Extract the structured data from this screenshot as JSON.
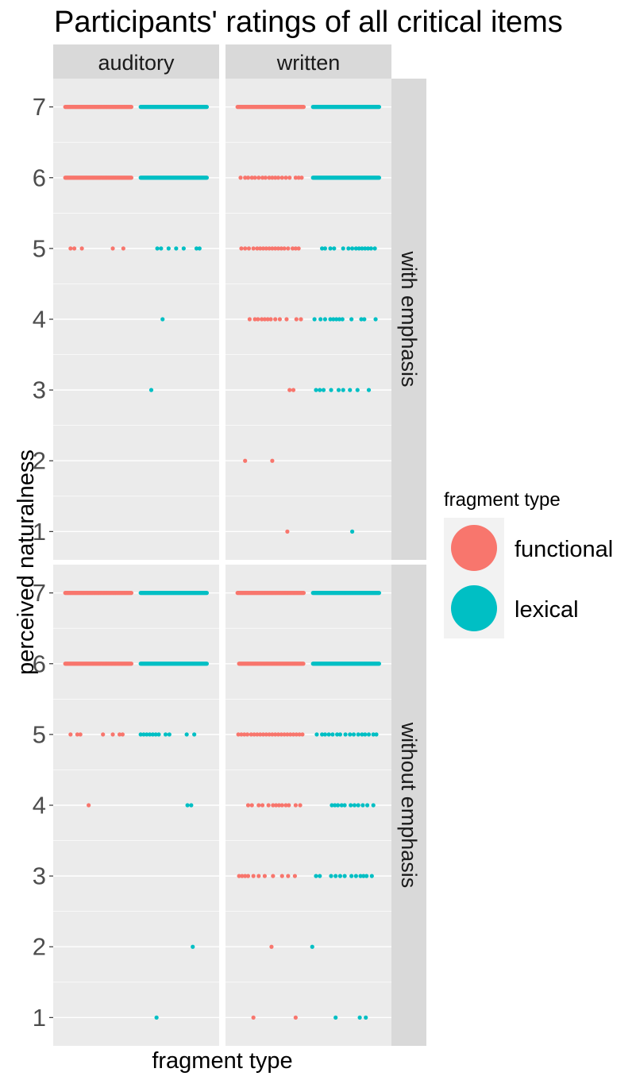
{
  "chart_data": {
    "type": "scatter",
    "title": "Participants' ratings of all critical items",
    "xlabel": "fragment type",
    "ylabel": "perceived naturalness",
    "ylim": [
      0.6,
      7.4
    ],
    "yticks": [
      1,
      2,
      3,
      4,
      5,
      6,
      7
    ],
    "grid": true,
    "x_ticks_shown": false,
    "legend": {
      "title": "fragment type",
      "position": "right",
      "entries": [
        {
          "label": "functional",
          "color": "#F8766D"
        },
        {
          "label": "lexical",
          "color": "#00BFC4"
        }
      ]
    },
    "facet_columns": [
      "auditory",
      "written"
    ],
    "facet_rows": [
      "with emphasis",
      "without emphasis"
    ],
    "jitter_groups": {
      "functional": [
        0.55,
        1.45
      ],
      "lexical": [
        1.55,
        2.45
      ]
    },
    "panels": [
      {
        "column": "auditory",
        "row": "with emphasis",
        "series": [
          {
            "name": "functional",
            "points": [
              {
                "y": 7,
                "x_range": [
                  0.56,
                  1.44
                ]
              },
              {
                "y": 6,
                "x_range": [
                  0.56,
                  1.44
                ]
              },
              {
                "y": 5,
                "x": [
                  0.63,
                  0.68,
                  0.78,
                  1.19,
                  1.33
                ]
              }
            ]
          },
          {
            "name": "lexical",
            "points": [
              {
                "y": 7,
                "x_range": [
                  1.56,
                  2.44
                ]
              },
              {
                "y": 6,
                "x_range": [
                  1.56,
                  2.44
                ]
              },
              {
                "y": 5,
                "x": [
                  1.78,
                  1.83,
                  1.93,
                  2.03,
                  2.13,
                  2.3,
                  2.34
                ]
              },
              {
                "y": 4,
                "x": [
                  1.85
                ]
              },
              {
                "y": 3,
                "x": [
                  1.7
                ]
              }
            ]
          }
        ]
      },
      {
        "column": "written",
        "row": "with emphasis",
        "series": [
          {
            "name": "functional",
            "points": [
              {
                "y": 7,
                "x_range": [
                  0.56,
                  1.44
                ]
              },
              {
                "y": 6,
                "x": [
                  0.6,
                  0.66,
                  0.7,
                  0.75,
                  0.79,
                  0.84,
                  0.89,
                  0.93,
                  0.98,
                  1.02,
                  1.06,
                  1.1,
                  1.15,
                  1.2,
                  1.25,
                  1.33,
                  1.37,
                  1.41
                ]
              },
              {
                "y": 5,
                "x": [
                  0.61,
                  0.66,
                  0.71,
                  0.77,
                  0.82,
                  0.86,
                  0.9,
                  0.94,
                  0.98,
                  1.02,
                  1.06,
                  1.1,
                  1.14,
                  1.18,
                  1.23,
                  1.29,
                  1.33,
                  1.37
                ]
              },
              {
                "y": 4,
                "x": [
                  0.72,
                  0.79,
                  0.83,
                  0.88,
                  0.92,
                  0.96,
                  1.0,
                  1.06,
                  1.12,
                  1.21,
                  1.34,
                  1.4
                ]
              },
              {
                "y": 3,
                "x": [
                  1.25,
                  1.3
                ]
              },
              {
                "y": 2,
                "x": [
                  0.66,
                  1.02
                ]
              },
              {
                "y": 1,
                "x": [
                  1.22
                ]
              }
            ]
          },
          {
            "name": "lexical",
            "points": [
              {
                "y": 7,
                "x_range": [
                  1.56,
                  2.44
                ]
              },
              {
                "y": 6,
                "x_range": [
                  1.56,
                  2.44
                ]
              },
              {
                "y": 5,
                "x": [
                  1.68,
                  1.72,
                  1.79,
                  1.84,
                  1.96,
                  2.03,
                  2.08,
                  2.13,
                  2.17,
                  2.21,
                  2.25,
                  2.29,
                  2.33,
                  2.38
                ]
              },
              {
                "y": 4,
                "x": [
                  1.58,
                  1.66,
                  1.72,
                  1.79,
                  1.83,
                  1.87,
                  1.91,
                  1.95,
                  2.07,
                  2.2,
                  2.24,
                  2.39
                ]
              },
              {
                "y": 3,
                "x": [
                  1.6,
                  1.65,
                  1.7,
                  1.8,
                  1.9,
                  1.96,
                  2.05,
                  2.15,
                  2.3
                ]
              },
              {
                "y": 1,
                "x": [
                  2.08
                ]
              }
            ]
          }
        ]
      },
      {
        "column": "auditory",
        "row": "without emphasis",
        "series": [
          {
            "name": "functional",
            "points": [
              {
                "y": 7,
                "x_range": [
                  0.56,
                  1.44
                ]
              },
              {
                "y": 6,
                "x_range": [
                  0.56,
                  1.44
                ]
              },
              {
                "y": 5,
                "x": [
                  0.63,
                  0.72,
                  0.76,
                  1.06,
                  1.19,
                  1.28,
                  1.32
                ]
              },
              {
                "y": 4,
                "x": [
                  0.87
                ]
              }
            ]
          },
          {
            "name": "lexical",
            "points": [
              {
                "y": 7,
                "x_range": [
                  1.56,
                  2.44
                ]
              },
              {
                "y": 6,
                "x_range": [
                  1.56,
                  2.44
                ]
              },
              {
                "y": 5,
                "x": [
                  1.56,
                  1.6,
                  1.64,
                  1.68,
                  1.72,
                  1.76,
                  1.8,
                  1.89,
                  1.94,
                  2.17,
                  2.27
                ]
              },
              {
                "y": 4,
                "x": [
                  2.18,
                  2.23
                ]
              },
              {
                "y": 2,
                "x": [
                  2.25
                ]
              },
              {
                "y": 1,
                "x": [
                  1.77
                ]
              }
            ]
          }
        ]
      },
      {
        "column": "written",
        "row": "without emphasis",
        "series": [
          {
            "name": "functional",
            "points": [
              {
                "y": 7,
                "x_range": [
                  0.56,
                  1.44
                ]
              },
              {
                "y": 6,
                "x_range": [
                  0.58,
                  1.44
                ]
              },
              {
                "y": 5,
                "x": [
                  0.57,
                  0.61,
                  0.65,
                  0.69,
                  0.74,
                  0.78,
                  0.82,
                  0.86,
                  0.9,
                  0.94,
                  0.98,
                  1.02,
                  1.06,
                  1.1,
                  1.14,
                  1.18,
                  1.22,
                  1.26,
                  1.3,
                  1.34,
                  1.38,
                  1.42
                ]
              },
              {
                "y": 4,
                "x": [
                  0.7,
                  0.75,
                  0.84,
                  0.89,
                  0.97,
                  1.03,
                  1.07,
                  1.11,
                  1.15,
                  1.2,
                  1.24,
                  1.33,
                  1.39
                ]
              },
              {
                "y": 3,
                "x": [
                  0.58,
                  0.62,
                  0.66,
                  0.7,
                  0.77,
                  0.84,
                  0.92,
                  1.03,
                  1.15,
                  1.23,
                  1.32
                ]
              },
              {
                "y": 2,
                "x": [
                  1.01
                ]
              },
              {
                "y": 1,
                "x": [
                  0.77,
                  1.33
                ]
              }
            ]
          },
          {
            "name": "lexical",
            "points": [
              {
                "y": 7,
                "x_range": [
                  1.56,
                  2.44
                ]
              },
              {
                "y": 6,
                "x_range": [
                  1.56,
                  2.44
                ]
              },
              {
                "y": 5,
                "x": [
                  1.61,
                  1.68,
                  1.72,
                  1.77,
                  1.82,
                  1.88,
                  1.92,
                  1.99,
                  2.05,
                  2.1,
                  2.16,
                  2.21,
                  2.25,
                  2.3,
                  2.36,
                  2.4
                ]
              },
              {
                "y": 4,
                "x": [
                  1.81,
                  1.85,
                  1.89,
                  1.94,
                  1.98,
                  2.06,
                  2.11,
                  2.16,
                  2.22,
                  2.28,
                  2.36
                ]
              },
              {
                "y": 3,
                "x": [
                  1.6,
                  1.65,
                  1.8,
                  1.86,
                  1.92,
                  1.98,
                  2.07,
                  2.13,
                  2.19,
                  2.23,
                  2.27,
                  2.34
                ]
              },
              {
                "y": 2,
                "x": [
                  1.55
                ]
              },
              {
                "y": 1,
                "x": [
                  1.86,
                  2.18,
                  2.26
                ]
              }
            ]
          }
        ]
      }
    ]
  }
}
